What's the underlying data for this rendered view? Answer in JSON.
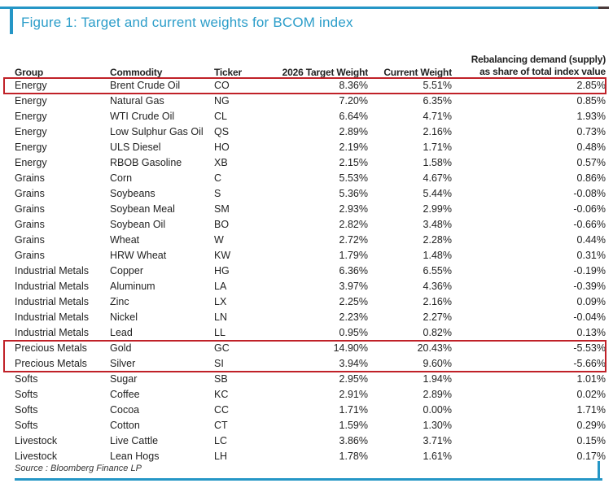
{
  "figure": {
    "title": "Figure 1: Target and current weights for BCOM index",
    "source": "Source : Bloomberg Finance LP"
  },
  "colors": {
    "accent_blue": "#2B9DC9",
    "rule_blue": "#2596C6",
    "highlight_red": "#C02128"
  },
  "table": {
    "headers": {
      "group": "Group",
      "commodity": "Commodity",
      "ticker": "Ticker",
      "target": "2026 Target Weight",
      "current": "Current Weight",
      "rebal_line1": "Rebalancing demand (supply)",
      "rebal_line2": "as share of total index value"
    },
    "rows": [
      {
        "group": "Energy",
        "commodity": "Brent Crude Oil",
        "ticker": "CO",
        "target": "8.36%",
        "current": "5.51%",
        "rebalancing": "2.85%",
        "highlight": "box1"
      },
      {
        "group": "Energy",
        "commodity": "Natural Gas",
        "ticker": "NG",
        "target": "7.20%",
        "current": "6.35%",
        "rebalancing": "0.85%"
      },
      {
        "group": "Energy",
        "commodity": "WTI Crude Oil",
        "ticker": "CL",
        "target": "6.64%",
        "current": "4.71%",
        "rebalancing": "1.93%"
      },
      {
        "group": "Energy",
        "commodity": "Low Sulphur Gas Oil",
        "ticker": "QS",
        "target": "2.89%",
        "current": "2.16%",
        "rebalancing": "0.73%"
      },
      {
        "group": "Energy",
        "commodity": "ULS Diesel",
        "ticker": "HO",
        "target": "2.19%",
        "current": "1.71%",
        "rebalancing": "0.48%"
      },
      {
        "group": "Energy",
        "commodity": "RBOB Gasoline",
        "ticker": "XB",
        "target": "2.15%",
        "current": "1.58%",
        "rebalancing": "0.57%"
      },
      {
        "group": "Grains",
        "commodity": "Corn",
        "ticker": "C",
        "target": "5.53%",
        "current": "4.67%",
        "rebalancing": "0.86%"
      },
      {
        "group": "Grains",
        "commodity": "Soybeans",
        "ticker": "S",
        "target": "5.36%",
        "current": "5.44%",
        "rebalancing": "-0.08%"
      },
      {
        "group": "Grains",
        "commodity": "Soybean Meal",
        "ticker": "SM",
        "target": "2.93%",
        "current": "2.99%",
        "rebalancing": "-0.06%"
      },
      {
        "group": "Grains",
        "commodity": "Soybean Oil",
        "ticker": "BO",
        "target": "2.82%",
        "current": "3.48%",
        "rebalancing": "-0.66%"
      },
      {
        "group": "Grains",
        "commodity": "Wheat",
        "ticker": "W",
        "target": "2.72%",
        "current": "2.28%",
        "rebalancing": "0.44%"
      },
      {
        "group": "Grains",
        "commodity": "HRW Wheat",
        "ticker": "KW",
        "target": "1.79%",
        "current": "1.48%",
        "rebalancing": "0.31%"
      },
      {
        "group": "Industrial Metals",
        "commodity": "Copper",
        "ticker": "HG",
        "target": "6.36%",
        "current": "6.55%",
        "rebalancing": "-0.19%"
      },
      {
        "group": "Industrial Metals",
        "commodity": "Aluminum",
        "ticker": "LA",
        "target": "3.97%",
        "current": "4.36%",
        "rebalancing": "-0.39%"
      },
      {
        "group": "Industrial Metals",
        "commodity": "Zinc",
        "ticker": "LX",
        "target": "2.25%",
        "current": "2.16%",
        "rebalancing": "0.09%"
      },
      {
        "group": "Industrial Metals",
        "commodity": "Nickel",
        "ticker": "LN",
        "target": "2.23%",
        "current": "2.27%",
        "rebalancing": "-0.04%"
      },
      {
        "group": "Industrial Metals",
        "commodity": "Lead",
        "ticker": "LL",
        "target": "0.95%",
        "current": "0.82%",
        "rebalancing": "0.13%"
      },
      {
        "group": "Precious Metals",
        "commodity": "Gold",
        "ticker": "GC",
        "target": "14.90%",
        "current": "20.43%",
        "rebalancing": "-5.53%",
        "highlight": "box2"
      },
      {
        "group": "Precious Metals",
        "commodity": "Silver",
        "ticker": "SI",
        "target": "3.94%",
        "current": "9.60%",
        "rebalancing": "-5.66%",
        "highlight": "box2"
      },
      {
        "group": "Softs",
        "commodity": "Sugar",
        "ticker": "SB",
        "target": "2.95%",
        "current": "1.94%",
        "rebalancing": "1.01%"
      },
      {
        "group": "Softs",
        "commodity": "Coffee",
        "ticker": "KC",
        "target": "2.91%",
        "current": "2.89%",
        "rebalancing": "0.02%"
      },
      {
        "group": "Softs",
        "commodity": "Cocoa",
        "ticker": "CC",
        "target": "1.71%",
        "current": "0.00%",
        "rebalancing": "1.71%"
      },
      {
        "group": "Softs",
        "commodity": "Cotton",
        "ticker": "CT",
        "target": "1.59%",
        "current": "1.30%",
        "rebalancing": "0.29%"
      },
      {
        "group": "Livestock",
        "commodity": "Live Cattle",
        "ticker": "LC",
        "target": "3.86%",
        "current": "3.71%",
        "rebalancing": "0.15%"
      },
      {
        "group": "Livestock",
        "commodity": "Lean Hogs",
        "ticker": "LH",
        "target": "1.78%",
        "current": "1.61%",
        "rebalancing": "0.17%"
      }
    ]
  }
}
